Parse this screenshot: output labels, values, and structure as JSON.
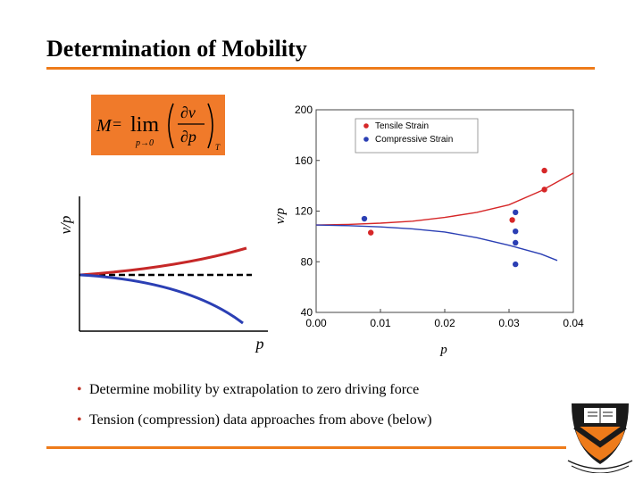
{
  "slide": {
    "title": "Determination of Mobility",
    "bullets": [
      "Determine mobility by extrapolation to zero driving force",
      "Tension (compression) data approaches from above (below)"
    ]
  },
  "formula": {
    "lhs": "M",
    "equals": "=",
    "op": "lim",
    "limit": "p→0",
    "numerator": "∂v",
    "denominator": "∂p",
    "subscript": "T"
  },
  "schematic": {
    "ylabel": "v/p",
    "xlabel": "p"
  },
  "colors": {
    "accent": "#ee7b1a",
    "tensile": "#d62728",
    "compressive": "#2b3fb4"
  },
  "chart_data": {
    "type": "scatter",
    "title": "",
    "xlabel": "p",
    "ylabel": "v/p",
    "xlim": [
      0,
      0.04
    ],
    "ylim": [
      40,
      200
    ],
    "xticks": [
      "0.00",
      "0.01",
      "0.02",
      "0.03",
      "0.04"
    ],
    "yticks": [
      "40",
      "80",
      "120",
      "160",
      "200"
    ],
    "legend_position": "top-left",
    "series": [
      {
        "name": "Tensile Strain",
        "color": "#d62728",
        "points": [
          [
            0.0085,
            103
          ],
          [
            0.0305,
            113
          ],
          [
            0.0355,
            152
          ],
          [
            0.0355,
            137
          ]
        ],
        "fit": [
          [
            0,
            109
          ],
          [
            0.005,
            109.5
          ],
          [
            0.01,
            110.5
          ],
          [
            0.015,
            112
          ],
          [
            0.02,
            115
          ],
          [
            0.025,
            119
          ],
          [
            0.03,
            125
          ],
          [
            0.035,
            136
          ],
          [
            0.04,
            150
          ]
        ]
      },
      {
        "name": "Compressive Strain",
        "color": "#2b3fb4",
        "points": [
          [
            0.0075,
            114
          ],
          [
            0.031,
            119
          ],
          [
            0.031,
            104
          ],
          [
            0.031,
            95
          ],
          [
            0.031,
            78
          ]
        ],
        "fit": [
          [
            0,
            109
          ],
          [
            0.005,
            108.5
          ],
          [
            0.01,
            107.5
          ],
          [
            0.015,
            106
          ],
          [
            0.02,
            103.5
          ],
          [
            0.025,
            99
          ],
          [
            0.03,
            93
          ],
          [
            0.035,
            86
          ],
          [
            0.0375,
            81
          ]
        ]
      }
    ]
  }
}
